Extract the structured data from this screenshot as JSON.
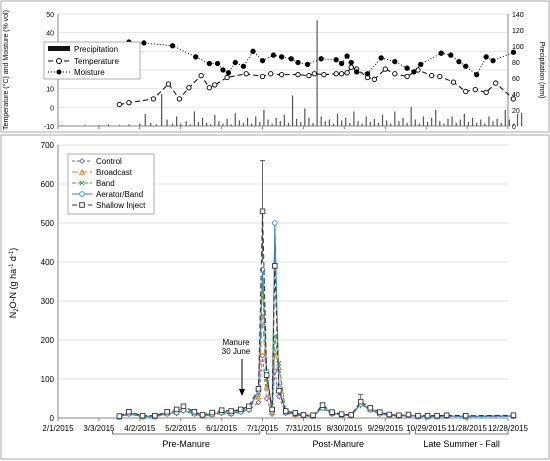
{
  "chart_data": [
    {
      "type": "line",
      "y_left_label": "Temperature (°C) and Moisture (% vol)",
      "y_right_label": "Precipitation (mm)",
      "y_left_ticks": [
        "-10",
        "0",
        "10",
        "20",
        "30",
        "40",
        "50"
      ],
      "y_right_ticks": [
        "0",
        "20",
        "40",
        "60",
        "80",
        "100",
        "120",
        "140"
      ],
      "ylim_left": [
        -10,
        50
      ],
      "ylim_right": [
        0,
        140
      ],
      "legend_position": "top-left",
      "legend": [
        "Precipitation",
        "Temperature",
        "Moisture"
      ],
      "x_units": "days since 2/1/2015",
      "precipitation": {
        "name": "Precipitation",
        "x": [
          3,
          20,
          30,
          37,
          45,
          52,
          60,
          64,
          68,
          72,
          76,
          80,
          84,
          87,
          90,
          94,
          97,
          100,
          103,
          106,
          109,
          112,
          115,
          118,
          121,
          124,
          127,
          130,
          133,
          136,
          139,
          142,
          145,
          148,
          151,
          154,
          157,
          160,
          163,
          166,
          169,
          172,
          175,
          178,
          181,
          184,
          187,
          190,
          193,
          196,
          199,
          202,
          205,
          208,
          211,
          214,
          217,
          220,
          223,
          226,
          229,
          232,
          235,
          238,
          241,
          244,
          247,
          250,
          253,
          256,
          259,
          262,
          265,
          268,
          271,
          274,
          277,
          280,
          283,
          286,
          289,
          292,
          295,
          298,
          301,
          304,
          307,
          310,
          313,
          316,
          319,
          322,
          325,
          328,
          331,
          334,
          337,
          340
        ],
        "values": [
          1,
          1,
          1,
          2,
          1,
          2,
          3,
          15,
          4,
          2,
          40,
          8,
          3,
          12,
          3,
          6,
          2,
          18,
          5,
          10,
          4,
          2,
          14,
          6,
          3,
          9,
          2,
          16,
          7,
          4,
          10,
          3,
          12,
          5,
          20,
          8,
          3,
          10,
          6,
          14,
          4,
          38,
          9,
          5,
          22,
          10,
          4,
          132,
          12,
          6,
          8,
          3,
          15,
          7,
          10,
          4,
          18,
          6,
          3,
          12,
          5,
          9,
          4,
          14,
          7,
          3,
          18,
          6,
          10,
          4,
          24,
          8,
          3,
          12,
          5,
          10,
          20,
          6,
          3,
          9,
          12,
          4,
          8,
          15,
          5,
          10,
          4,
          8,
          3,
          12,
          6,
          9,
          4,
          20,
          8,
          3,
          15,
          16
        ]
      },
      "temperature": {
        "name": "Temperature",
        "x": [
          45,
          52,
          70,
          81,
          89,
          96,
          105,
          111,
          115,
          124,
          138,
          150,
          156,
          164,
          176,
          184,
          188,
          195,
          204,
          208,
          212,
          215,
          219,
          227,
          232,
          240,
          247,
          256,
          264,
          274,
          280,
          290,
          299,
          306,
          314,
          321,
          334
        ],
        "values": [
          1.5,
          2.5,
          4.5,
          12.5,
          4.5,
          10.5,
          17,
          10.5,
          12,
          16,
          18,
          16.5,
          18,
          17.5,
          17.5,
          17,
          18,
          17.5,
          18,
          18,
          18.5,
          21.5,
          20.5,
          16,
          15,
          20.5,
          18,
          16.5,
          20,
          17,
          16.5,
          13.5,
          8.5,
          9.5,
          8,
          13,
          4.5
        ]
      },
      "moisture": {
        "name": "Moisture",
        "x": [
          45,
          52,
          63,
          84,
          101,
          111,
          117,
          121,
          125,
          130,
          136,
          143,
          150,
          158,
          164,
          171,
          176,
          183,
          193,
          204,
          208,
          212,
          215,
          219,
          227,
          237,
          247,
          256,
          261,
          266,
          281,
          288,
          294,
          299,
          307,
          314,
          319,
          334
        ],
        "values": [
          32,
          35,
          34.5,
          33,
          27,
          23.5,
          23.5,
          20,
          18.5,
          24,
          22,
          30,
          25,
          28,
          27,
          26,
          24,
          23,
          26,
          25.5,
          23.5,
          27.5,
          24,
          19,
          18,
          26.5,
          24.5,
          21,
          19,
          23,
          29,
          28,
          24.5,
          22,
          17.5,
          27,
          25,
          29.5
        ]
      }
    },
    {
      "type": "line",
      "ylabel": "N2O-N (g ha-1 d-1)",
      "y_ticks": [
        "0",
        "100",
        "200",
        "300",
        "400",
        "500",
        "600",
        "700"
      ],
      "ylim": [
        0,
        700
      ],
      "x_tick_labels": [
        "2/1/2015",
        "3/3/2015",
        "4/2/2015",
        "5/2/2015",
        "6/1/2015",
        "7/1/2015",
        "7/31/2015",
        "8/30/2015",
        "9/29/2015",
        "10/29/2015",
        "11/28/2015",
        "12/28/2015"
      ],
      "xlim": [
        "2/1/2015",
        "12/28/2015"
      ],
      "legend_position": "top-left",
      "annotation": {
        "line1": "Manure",
        "line2": "30 June"
      },
      "periods": [
        "Pre-Manure",
        "Post-Manure",
        "Late Summer - Fall"
      ],
      "x_units": "days since 2/1/2015",
      "x": [
        45,
        52,
        62,
        71,
        80,
        87,
        92,
        100,
        106,
        113,
        120,
        127,
        134,
        140,
        147,
        150,
        153,
        157,
        159,
        162,
        167,
        174,
        180,
        187,
        194,
        201,
        208,
        215,
        222,
        229,
        236,
        243,
        250,
        257,
        264,
        271,
        278,
        285,
        299,
        334
      ],
      "series": [
        {
          "name": "Control",
          "color": "#7b5ea7",
          "marker": "diamond",
          "dash": "3,2",
          "values": [
            2,
            10,
            3,
            3,
            10,
            12,
            18,
            10,
            5,
            8,
            12,
            10,
            15,
            20,
            40,
            160,
            50,
            10,
            120,
            55,
            12,
            8,
            5,
            4,
            25,
            10,
            7,
            5,
            35,
            20,
            10,
            6,
            4,
            6,
            3,
            3,
            3,
            4,
            3,
            4
          ]
        },
        {
          "name": "Broadcast",
          "color": "#e07b27",
          "marker": "triangle",
          "dash": "6,3",
          "values": [
            3,
            12,
            4,
            4,
            12,
            15,
            22,
            12,
            6,
            10,
            15,
            12,
            18,
            25,
            55,
            260,
            80,
            15,
            170,
            130,
            15,
            10,
            6,
            5,
            28,
            12,
            8,
            6,
            38,
            22,
            12,
            7,
            5,
            7,
            4,
            4,
            4,
            5,
            4,
            5
          ]
        },
        {
          "name": "Band",
          "color": "#4a9a3a",
          "marker": "x",
          "dash": "4,2",
          "values": [
            4,
            14,
            5,
            5,
            14,
            18,
            25,
            14,
            7,
            12,
            18,
            15,
            20,
            28,
            65,
            340,
            100,
            20,
            210,
            140,
            16,
            12,
            7,
            6,
            30,
            14,
            9,
            7,
            40,
            24,
            14,
            8,
            6,
            8,
            5,
            5,
            5,
            6,
            5,
            6
          ]
        },
        {
          "name": "Aerator/Band",
          "color": "#2e8bc7",
          "marker": "circle",
          "dash": "",
          "values": [
            3,
            11,
            4,
            4,
            11,
            14,
            20,
            11,
            5,
            9,
            14,
            12,
            16,
            22,
            70,
            380,
            120,
            18,
            500,
            80,
            14,
            11,
            6,
            5,
            26,
            13,
            8,
            6,
            36,
            21,
            11,
            7,
            5,
            7,
            4,
            4,
            4,
            5,
            4,
            5
          ]
        },
        {
          "name": "Shallow Inject",
          "color": "#333333",
          "marker": "square",
          "dash": "5,3",
          "values": [
            5,
            16,
            6,
            6,
            16,
            22,
            30,
            16,
            8,
            14,
            20,
            18,
            22,
            30,
            75,
            530,
            110,
            22,
            390,
            70,
            18,
            13,
            8,
            7,
            33,
            15,
            10,
            8,
            42,
            26,
            15,
            9,
            7,
            9,
            6,
            6,
            6,
            7,
            6,
            7
          ]
        }
      ],
      "error_bars": [
        {
          "x": 150,
          "series": "Shallow Inject",
          "low": 400,
          "high": 660
        },
        {
          "x": 159,
          "series": "Aerator/Band",
          "low": 380,
          "high": 500
        },
        {
          "x": 222,
          "series": "Shallow Inject",
          "low": 25,
          "high": 60
        }
      ]
    }
  ]
}
